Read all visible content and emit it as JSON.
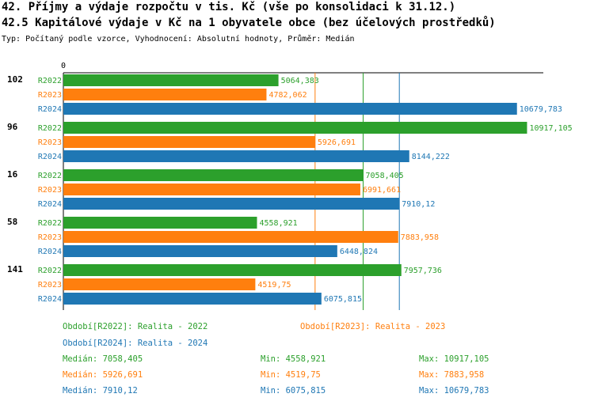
{
  "header": {
    "title1": "42. Příjmy a výdaje rozpočtu v tis. Kč (vše po konsolidaci k 31.12.)",
    "title2": "42.5 Kapitálové výdaje v Kč na 1 obyvatele obce (bez účelových prostředků)",
    "subtitle": "Typ: Počítaný podle vzorce, Vyhodnocení: Absolutní hodnoty, Průměr: Medián"
  },
  "colors": {
    "R2022": "#2ca02c",
    "R2023": "#ff7f0e",
    "R2024": "#1f77b4"
  },
  "chart_data": {
    "type": "bar",
    "orientation": "horizontal",
    "zero_label": "0",
    "xlim": [
      0,
      11300
    ],
    "categories": [
      "102",
      "96",
      "16",
      "58",
      "141"
    ],
    "series": [
      {
        "name": "R2022",
        "values": [
          5064.383,
          10917.105,
          7058.405,
          4558.921,
          7957.736
        ],
        "labels": [
          "5064,383",
          "10917,105",
          "7058,405",
          "4558,921",
          "7957,736"
        ]
      },
      {
        "name": "R2023",
        "values": [
          4782.062,
          5926.691,
          6991.661,
          7883.958,
          4519.75
        ],
        "labels": [
          "4782,062",
          "5926,691",
          "6991,661",
          "7883,958",
          "4519,75"
        ]
      },
      {
        "name": "R2024",
        "values": [
          10679.783,
          8144.222,
          7910.12,
          6448.824,
          6075.815
        ],
        "labels": [
          "10679,783",
          "8144,222",
          "7910,12",
          "6448,824",
          "6075,815"
        ]
      }
    ],
    "median_lines": [
      5926.691,
      7058.405,
      7910.12
    ]
  },
  "legend": {
    "r2022": "Období[R2022]: Realita - 2022",
    "r2023": "Období[R2023]: Realita - 2023",
    "r2024": "Období[R2024]: Realita - 2024"
  },
  "stats": [
    {
      "median": "Medián: 7058,405",
      "min": "Min: 4558,921",
      "max": "Max: 10917,105"
    },
    {
      "median": "Medián: 5926,691",
      "min": "Min: 4519,75",
      "max": "Max: 7883,958"
    },
    {
      "median": "Medián: 7910,12",
      "min": "Min: 6075,815",
      "max": "Max: 10679,783"
    }
  ]
}
